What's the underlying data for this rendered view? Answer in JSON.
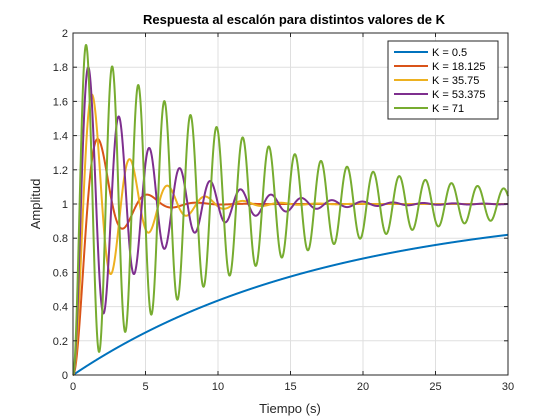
{
  "chart_data": {
    "type": "line",
    "title": "Respuesta al escalón para distintos valores de K",
    "xlabel": "Tiempo (s)",
    "ylabel": "Amplitud",
    "xlim": [
      0,
      30
    ],
    "ylim": [
      0,
      2
    ],
    "xticks": [
      "0",
      "5",
      "10",
      "15",
      "20",
      "25",
      "30"
    ],
    "yticks": [
      "0",
      "0.2",
      "0.4",
      "0.6",
      "0.8",
      "1",
      "1.2",
      "1.4",
      "1.6",
      "1.8",
      "2"
    ],
    "grid": true,
    "legend_position": "top-right",
    "series": [
      {
        "name": "K = 0.5",
        "color": "#0072BD",
        "model": {
          "kind": "first-order",
          "tau": 17.5
        }
      },
      {
        "name": "K = 18.125",
        "color": "#D95319",
        "model": {
          "kind": "second-order",
          "overshoot": 0.38,
          "peak_time": 1.7,
          "settle_time": 8.0
        }
      },
      {
        "name": "K = 35.75",
        "color": "#EDB120",
        "model": {
          "kind": "second-order",
          "overshoot": 0.64,
          "peak_time": 1.3,
          "settle_time": 16.0
        }
      },
      {
        "name": "K = 53.375",
        "color": "#7E2F8E",
        "model": {
          "kind": "second-order",
          "overshoot": 0.8,
          "peak_time": 1.05,
          "settle_time": 30.0
        }
      },
      {
        "name": "K = 71",
        "color": "#77AC30",
        "model": {
          "kind": "second-order",
          "overshoot": 0.93,
          "peak_time": 0.9,
          "settle_time": 300.0
        }
      }
    ]
  }
}
